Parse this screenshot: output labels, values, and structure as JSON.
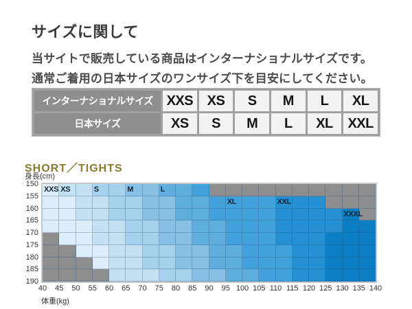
{
  "title": "サイズに関して",
  "intro_lines": [
    "当サイトで販売している商品はインターナショナルサイズです。",
    "通常ご着用の日本サイズのワンサイズ下を目安にしてください。"
  ],
  "size_table": {
    "rows": [
      {
        "header": "インターナショナルサイズ",
        "cells": [
          "XXS",
          "XS",
          "S",
          "M",
          "L",
          "XL"
        ]
      },
      {
        "header": "日本サイズ",
        "cells": [
          "XS",
          "S",
          "M",
          "L",
          "XL",
          "XXL"
        ]
      }
    ],
    "header_bg": "#8e8e8e",
    "header_text_color": "#ffffff",
    "cell_bg": "#f3f3f3",
    "cell_text_color": "#151515"
  },
  "section_heading": "SHORT／TIGHTS",
  "section_heading_color": "#877b2c",
  "chart_data": {
    "type": "heatmap",
    "x_axis": {
      "label": "体重(kg)",
      "ticks": [
        40,
        45,
        50,
        55,
        60,
        65,
        70,
        75,
        80,
        85,
        90,
        95,
        100,
        105,
        110,
        115,
        120,
        125,
        130,
        135,
        140
      ],
      "kg_per_col": 5
    },
    "y_axis": {
      "label": "身長(cm)",
      "ticks": [
        150,
        155,
        160,
        165,
        170,
        175,
        180,
        185,
        190
      ],
      "cm_per_row": 5
    },
    "na_color": "#8e8e8e",
    "grid_line_color": "rgba(40,80,115,0.32)",
    "sizes": [
      {
        "name": "XXS",
        "color": "#dceef9"
      },
      {
        "name": "XS",
        "color": "#c4e1f3"
      },
      {
        "name": "S",
        "color": "#a6d2ed"
      },
      {
        "name": "M",
        "color": "#89c1e6"
      },
      {
        "name": "L",
        "color": "#5faede"
      },
      {
        "name": "XL",
        "color": "#41a1da"
      },
      {
        "name": "XXL",
        "color": "#2590d2"
      },
      {
        "name": "XXXL",
        "color": "#0c7ec5"
      }
    ],
    "rows": [
      {
        "height_cm": "150-155",
        "cells": [
          "XXS",
          "XS",
          "XS",
          "S",
          "S",
          "M",
          "M",
          "L",
          "L",
          "XL",
          "NA",
          "NA",
          "NA",
          "NA",
          "NA",
          "NA",
          "NA",
          "NA",
          "NA",
          "NA"
        ]
      },
      {
        "height_cm": "155-160",
        "cells": [
          "XXS",
          "XXS",
          "XS",
          "XS",
          "S",
          "S",
          "M",
          "M",
          "L",
          "L",
          "XL",
          "XL",
          "XL",
          "XL",
          "XXL",
          "XXL",
          "XXL",
          "NA",
          "NA",
          "NA"
        ]
      },
      {
        "height_cm": "160-165",
        "cells": [
          "XXS",
          "XXS",
          "XS",
          "XS",
          "S",
          "S",
          "M",
          "M",
          "L",
          "L",
          "XL",
          "XL",
          "XL",
          "XL",
          "XXL",
          "XXL",
          "XXL",
          "XXL",
          "XXXL",
          "NA"
        ]
      },
      {
        "height_cm": "165-170",
        "cells": [
          "XXS",
          "XXS",
          "XXS",
          "XS",
          "XS",
          "S",
          "S",
          "M",
          "M",
          "L",
          "L",
          "XL",
          "XL",
          "XL",
          "XXL",
          "XXL",
          "XXL",
          "XXL",
          "XXXL",
          "XXXL"
        ]
      },
      {
        "height_cm": "170-175",
        "cells": [
          "NA",
          "XXS",
          "XXS",
          "XS",
          "XS",
          "S",
          "S",
          "M",
          "M",
          "L",
          "L",
          "XL",
          "XL",
          "XL",
          "XXL",
          "XXL",
          "XXL",
          "XXXL",
          "XXXL",
          "XXXL"
        ]
      },
      {
        "height_cm": "175-180",
        "cells": [
          "NA",
          "NA",
          "XXS",
          "XXS",
          "XS",
          "XS",
          "S",
          "S",
          "M",
          "M",
          "L",
          "L",
          "XL",
          "XL",
          "XL",
          "XXL",
          "XXL",
          "XXXL",
          "XXXL",
          "XXXL"
        ]
      },
      {
        "height_cm": "180-185",
        "cells": [
          "NA",
          "NA",
          "NA",
          "XXS",
          "XS",
          "XS",
          "S",
          "S",
          "M",
          "M",
          "L",
          "L",
          "XL",
          "XL",
          "XL",
          "XXL",
          "XXL",
          "XXXL",
          "XXXL",
          "XXXL"
        ]
      },
      {
        "height_cm": "185-190",
        "cells": [
          "NA",
          "NA",
          "NA",
          "NA",
          "XS",
          "XS",
          "XS",
          "S",
          "S",
          "M",
          "M",
          "L",
          "L",
          "XL",
          "XL",
          "XXL",
          "XXL",
          "XXXL",
          "XXXL",
          "XXXL"
        ]
      }
    ],
    "region_labels": [
      {
        "text": "XXS",
        "row": 0,
        "col": 0
      },
      {
        "text": "XS",
        "row": 0,
        "col": 1
      },
      {
        "text": "S",
        "row": 0,
        "col": 3
      },
      {
        "text": "M",
        "row": 0,
        "col": 5
      },
      {
        "text": "L",
        "row": 0,
        "col": 7
      },
      {
        "text": "XL",
        "row": 1,
        "col": 11
      },
      {
        "text": "XXL",
        "row": 1,
        "col": 14
      },
      {
        "text": "XXXL",
        "row": 2,
        "col": 18
      }
    ]
  }
}
